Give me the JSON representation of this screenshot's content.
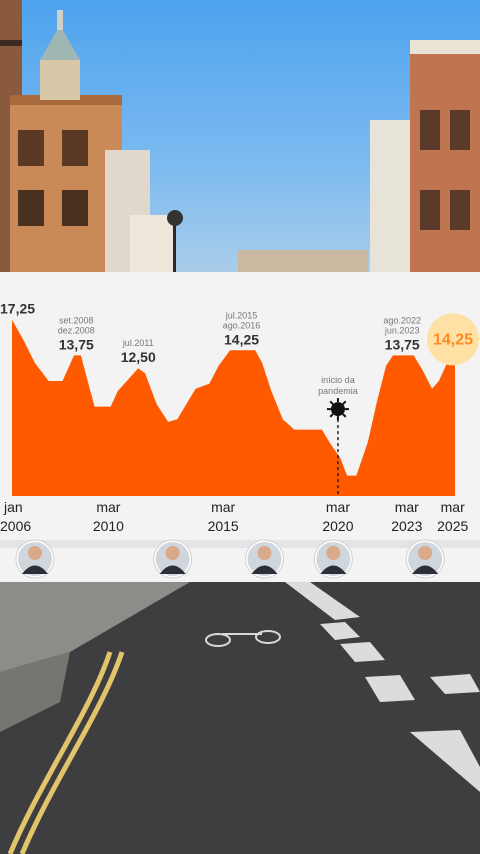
{
  "chart_data": {
    "type": "area",
    "color": "#ff5a00",
    "highlight_color": "#ff8a1f",
    "x_ticks": [
      {
        "top": "jan",
        "bottom": "2006",
        "x": 2006.0
      },
      {
        "top": "mar",
        "bottom": "2010",
        "x": 2010.2
      },
      {
        "top": "mar",
        "bottom": "2015",
        "x": 2015.2
      },
      {
        "top": "mar",
        "bottom": "2020",
        "x": 2020.2
      },
      {
        "top": "mar",
        "bottom": "2023",
        "x": 2023.2
      },
      {
        "top": "mar",
        "bottom": "2025",
        "x": 2025.2
      }
    ],
    "ylim": [
      0,
      18
    ],
    "xlim": [
      2006,
      2025.3
    ],
    "points": [
      {
        "x": 2006.0,
        "y": 17.25
      },
      {
        "x": 2006.5,
        "y": 15.25
      },
      {
        "x": 2007.0,
        "y": 13.0
      },
      {
        "x": 2007.6,
        "y": 11.25
      },
      {
        "x": 2008.2,
        "y": 11.25
      },
      {
        "x": 2008.7,
        "y": 13.75
      },
      {
        "x": 2009.0,
        "y": 13.75
      },
      {
        "x": 2009.3,
        "y": 11.25
      },
      {
        "x": 2009.6,
        "y": 8.75
      },
      {
        "x": 2010.3,
        "y": 8.75
      },
      {
        "x": 2010.6,
        "y": 10.25
      },
      {
        "x": 2011.0,
        "y": 11.25
      },
      {
        "x": 2011.5,
        "y": 12.5
      },
      {
        "x": 2011.8,
        "y": 12.0
      },
      {
        "x": 2012.3,
        "y": 9.0
      },
      {
        "x": 2012.8,
        "y": 7.25
      },
      {
        "x": 2013.2,
        "y": 7.5
      },
      {
        "x": 2013.6,
        "y": 9.0
      },
      {
        "x": 2014.0,
        "y": 10.5
      },
      {
        "x": 2014.6,
        "y": 11.0
      },
      {
        "x": 2015.0,
        "y": 12.75
      },
      {
        "x": 2015.5,
        "y": 14.25
      },
      {
        "x": 2016.6,
        "y": 14.25
      },
      {
        "x": 2016.9,
        "y": 13.0
      },
      {
        "x": 2017.3,
        "y": 10.25
      },
      {
        "x": 2017.8,
        "y": 7.5
      },
      {
        "x": 2018.3,
        "y": 6.5
      },
      {
        "x": 2019.5,
        "y": 6.5
      },
      {
        "x": 2019.9,
        "y": 5.0
      },
      {
        "x": 2020.3,
        "y": 3.75
      },
      {
        "x": 2020.6,
        "y": 2.0
      },
      {
        "x": 2021.0,
        "y": 2.0
      },
      {
        "x": 2021.5,
        "y": 5.25
      },
      {
        "x": 2021.9,
        "y": 9.25
      },
      {
        "x": 2022.3,
        "y": 12.75
      },
      {
        "x": 2022.6,
        "y": 13.75
      },
      {
        "x": 2023.5,
        "y": 13.75
      },
      {
        "x": 2023.9,
        "y": 12.25
      },
      {
        "x": 2024.3,
        "y": 10.5
      },
      {
        "x": 2024.6,
        "y": 11.25
      },
      {
        "x": 2025.0,
        "y": 13.25
      },
      {
        "x": 2025.3,
        "y": 14.25
      }
    ],
    "annotations": [
      {
        "value": "17,25",
        "dates": [],
        "x": 2006.0,
        "y": 17.25
      },
      {
        "value": "13,75",
        "dates": [
          "set.2008",
          "dez.2008"
        ],
        "x": 2008.8,
        "y": 13.75
      },
      {
        "value": "12,50",
        "dates": [
          "jul.2011"
        ],
        "x": 2011.5,
        "y": 12.5
      },
      {
        "value": "14,25",
        "dates": [
          "jul.2015",
          "ago.2016"
        ],
        "x": 2016.0,
        "y": 14.25
      },
      {
        "value": "13,75",
        "dates": [
          "ago.2022",
          "jun.2023"
        ],
        "x": 2023.0,
        "y": 13.75
      },
      {
        "value": "14,25",
        "dates": [],
        "x": 2025.3,
        "y": 14.25,
        "highlight": true
      }
    ],
    "event": {
      "label": [
        "início da",
        "pandemia"
      ],
      "x": 2020.2,
      "y": 8.5
    }
  },
  "presidents": [
    {
      "icon": "president-photo-lula",
      "x": 2007.0
    },
    {
      "icon": "president-photo-dilma",
      "x": 2013.0
    },
    {
      "icon": "president-photo-temer",
      "x": 2017.0
    },
    {
      "icon": "president-photo-bolsonaro",
      "x": 2020.0
    },
    {
      "icon": "president-photo-lula",
      "x": 2024.0
    }
  ]
}
